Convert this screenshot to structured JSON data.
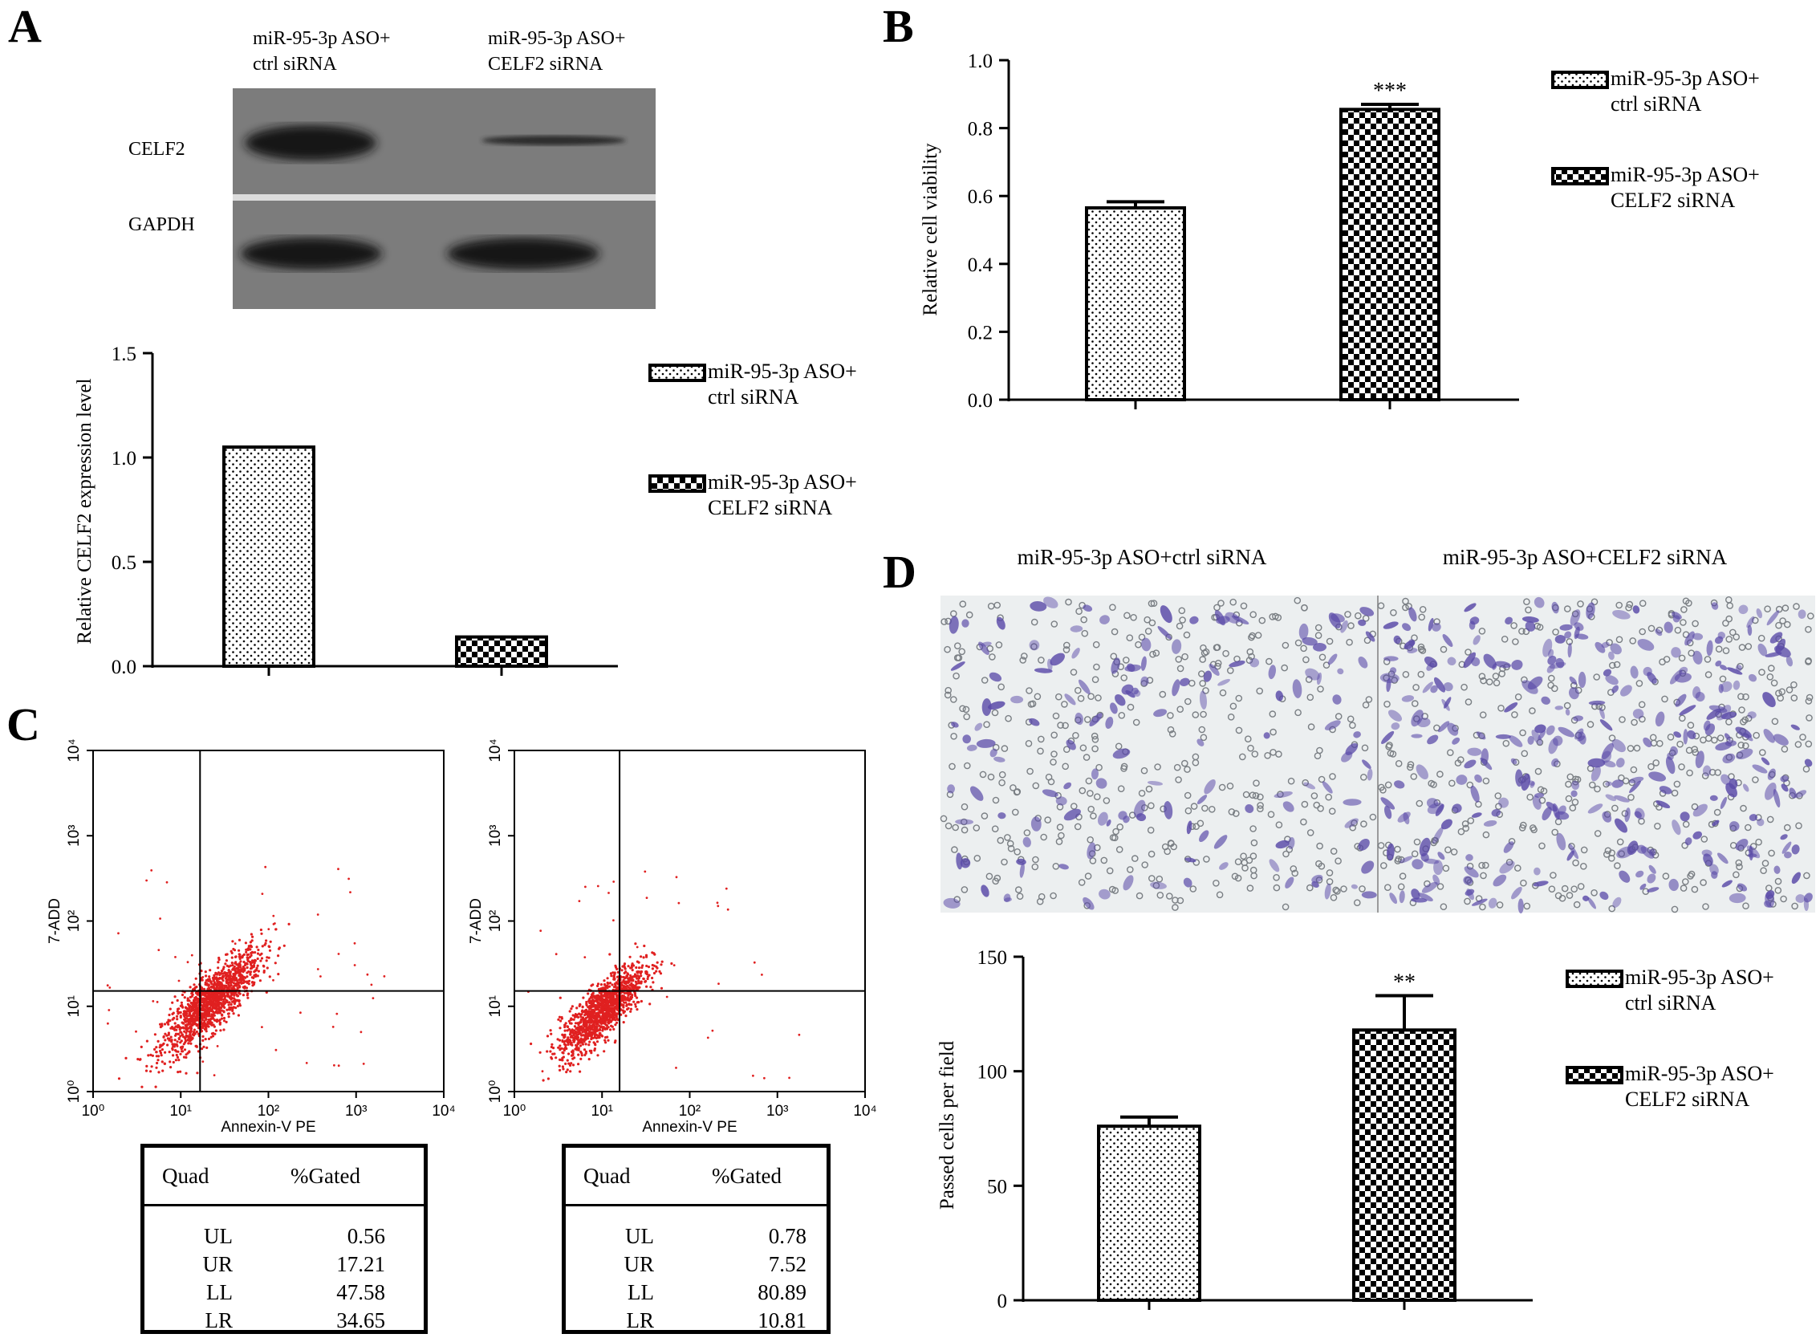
{
  "panel_labels": {
    "a": "A",
    "b": "B",
    "c": "C",
    "d": "D"
  },
  "patterns": {
    "dots": "dots-pattern",
    "checker": "checkerboard-pattern"
  },
  "panelA": {
    "blot": {
      "lane_headers": [
        [
          "miR-95-3p ASO+",
          "ctrl siRNA"
        ],
        [
          "miR-95-3p ASO+",
          "CELF2 siRNA"
        ]
      ],
      "row_labels": [
        "CELF2",
        "GAPDH"
      ],
      "background": "#7c7c7c"
    },
    "chart_data": {
      "type": "bar",
      "ylabel": "Relative CELF2 expression level",
      "ylim": [
        0,
        1.5
      ],
      "yticks": [
        "0.0",
        "0.5",
        "1.0",
        "1.5"
      ],
      "ytick_values": [
        0,
        0.5,
        1.0,
        1.5
      ],
      "series": [
        {
          "name": "miR-95-3p ASO+ ctrl siRNA",
          "legend": [
            "miR-95-3p ASO+",
            "ctrl siRNA"
          ],
          "value": 1.05,
          "pattern": "dots"
        },
        {
          "name": "miR-95-3p ASO+ CELF2 siRNA",
          "legend": [
            "miR-95-3p ASO+",
            "CELF2 siRNA"
          ],
          "value": 0.14,
          "pattern": "checker"
        }
      ]
    }
  },
  "panelB": {
    "chart_data": {
      "type": "bar",
      "ylabel": "Relative cell viability",
      "ylim": [
        0,
        1.0
      ],
      "yticks": [
        "0.0",
        "0.2",
        "0.4",
        "0.6",
        "0.8",
        "1.0"
      ],
      "ytick_values": [
        0,
        0.2,
        0.4,
        0.6,
        0.8,
        1.0
      ],
      "series": [
        {
          "name": "miR-95-3p ASO+ ctrl siRNA",
          "legend": [
            "miR-95-3p ASO+",
            "ctrl siRNA"
          ],
          "value": 0.565,
          "error": 0.018,
          "pattern": "dots"
        },
        {
          "name": "miR-95-3p ASO+ CELF2 siRNA",
          "legend": [
            "miR-95-3p ASO+",
            "CELF2 siRNA"
          ],
          "value": 0.855,
          "error": 0.015,
          "pattern": "checker",
          "significance": "***"
        }
      ]
    }
  },
  "panelC": {
    "plots": [
      {
        "xlabel": "Annexin-V PE",
        "ylabel": "7-ADD",
        "ticks": [
          "10⁰",
          "10¹",
          "10²",
          "10³",
          "10⁴"
        ],
        "dot_color": "#e02020",
        "table": {
          "headers": [
            "Quad",
            "%Gated"
          ],
          "rows": [
            [
              "UL",
              "0.56"
            ],
            [
              "UR",
              "17.21"
            ],
            [
              "LL",
              "47.58"
            ],
            [
              "LR",
              "34.65"
            ]
          ]
        }
      },
      {
        "xlabel": "Annexin-V PE",
        "ylabel": "7-ADD",
        "ticks": [
          "10⁰",
          "10¹",
          "10²",
          "10³",
          "10⁴"
        ],
        "dot_color": "#e02020",
        "table": {
          "headers": [
            "Quad",
            "%Gated"
          ],
          "rows": [
            [
              "UL",
              "0.78"
            ],
            [
              "UR",
              "7.52"
            ],
            [
              "LL",
              "80.89"
            ],
            [
              "LR",
              "10.81"
            ]
          ]
        }
      }
    ]
  },
  "panelD": {
    "image_titles": [
      "miR-95-3p ASO+ctrl siRNA",
      "miR-95-3p ASO+CELF2 siRNA"
    ],
    "stain_color": "#5a4aa8",
    "chart_data": {
      "type": "bar",
      "ylabel": "Passed cells per field",
      "ylim": [
        0,
        150
      ],
      "yticks": [
        "0",
        "50",
        "100",
        "150"
      ],
      "ytick_values": [
        0,
        50,
        100,
        150
      ],
      "series": [
        {
          "name": "miR-95-3p ASO+ ctrl siRNA",
          "legend": [
            "miR-95-3p ASO+",
            "ctrl siRNA"
          ],
          "value": 76,
          "error": 4,
          "pattern": "dots"
        },
        {
          "name": "miR-95-3p ASO+ CELF2 siRNA",
          "legend": [
            "miR-95-3p ASO+",
            "CELF2 siRNA"
          ],
          "value": 118,
          "error": 15,
          "pattern": "checker",
          "significance": "**"
        }
      ]
    }
  }
}
